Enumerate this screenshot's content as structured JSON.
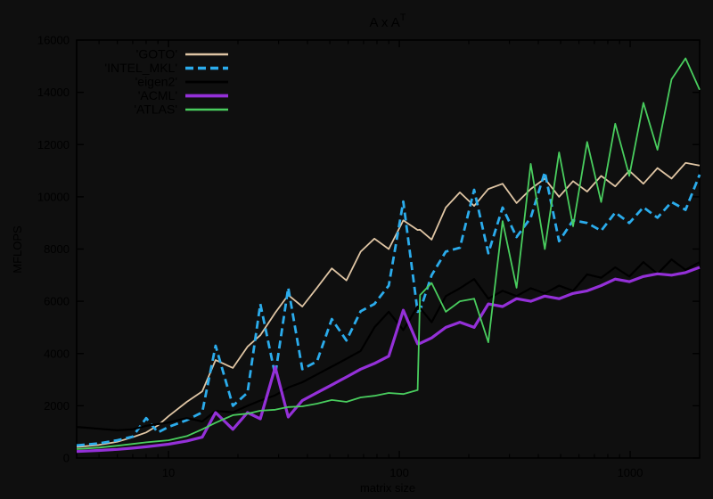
{
  "window": {
    "background_color": "#0f0f0f",
    "foreground_color": "#000000"
  },
  "title": {
    "base": "A x A",
    "sup": "T"
  },
  "axes": {
    "y_label": "MFLOPS",
    "x_label": "matrix size",
    "y_ticks": [
      0,
      2000,
      4000,
      6000,
      8000,
      10000,
      12000,
      14000,
      16000
    ],
    "x_ticks": [
      10,
      100,
      1000
    ],
    "x_minor_ticks": [
      4,
      5,
      6,
      7,
      8,
      9,
      20,
      30,
      40,
      50,
      60,
      70,
      80,
      90,
      200,
      300,
      400,
      500,
      600,
      700,
      800,
      900,
      2000
    ],
    "x_scale": "log",
    "x_range": [
      4,
      2000
    ],
    "y_range": [
      0,
      16000
    ]
  },
  "chart_data": {
    "type": "line",
    "title": "A x A^T",
    "xlabel": "matrix size",
    "ylabel": "MFLOPS",
    "x_scale": "log",
    "xlim": [
      4,
      2000
    ],
    "ylim": [
      0,
      16000
    ],
    "grid": false,
    "legend_position": "top-left-inside",
    "x": [
      4,
      5,
      6,
      7,
      8,
      9,
      10,
      12,
      14,
      16,
      19,
      22,
      25,
      29,
      33,
      38,
      44,
      51,
      59,
      68,
      78,
      90,
      104,
      120,
      123,
      138,
      159,
      183,
      211,
      243,
      280,
      322,
      371,
      427,
      492,
      566,
      651,
      749,
      862,
      992,
      1141,
      1313,
      1511,
      1738,
      2000
    ],
    "series": [
      {
        "key": "goto",
        "name": "'GOTO'",
        "color": "#dfc5a4",
        "dash": null,
        "width": 1.8,
        "values": [
          420,
          500,
          620,
          800,
          980,
          1250,
          1600,
          2150,
          2550,
          3750,
          3450,
          4260,
          4700,
          5560,
          6240,
          5800,
          6520,
          7260,
          6800,
          7900,
          8400,
          8000,
          9100,
          8730,
          8740,
          8360,
          9590,
          10170,
          9650,
          10300,
          10500,
          9760,
          10300,
          10700,
          10000,
          10600,
          10200,
          10800,
          10400,
          11000,
          10500,
          11100,
          10700,
          11300,
          11200
        ]
      },
      {
        "key": "intel-mkl",
        "name": "'INTEL_MKL'",
        "color": "#2bacec",
        "dash": "9,5",
        "width": 2.8,
        "values": [
          480,
          560,
          680,
          820,
          1530,
          980,
          1190,
          1450,
          1750,
          4300,
          2000,
          2500,
          5900,
          3170,
          6520,
          3400,
          3700,
          5320,
          4500,
          5620,
          5900,
          6600,
          9820,
          5600,
          5650,
          7000,
          7900,
          8050,
          10270,
          7840,
          9590,
          8460,
          9200,
          10950,
          8300,
          9100,
          9000,
          8700,
          9400,
          9000,
          9600,
          9200,
          9800,
          9500,
          10850
        ]
      },
      {
        "key": "eigen2",
        "name": "'eigen2'",
        "color": "#000000",
        "dash": null,
        "width": 2.2,
        "values": [
          1190,
          1120,
          1060,
          1100,
          1230,
          1300,
          1360,
          1530,
          1400,
          1800,
          1750,
          2000,
          2200,
          2400,
          2700,
          2900,
          3200,
          3500,
          3800,
          4100,
          5000,
          5600,
          4900,
          5800,
          5750,
          5200,
          6200,
          6500,
          6850,
          6100,
          6400,
          6200,
          6500,
          6300,
          6600,
          6400,
          7030,
          6900,
          7300,
          6950,
          7500,
          7050,
          7600,
          7200,
          7500
        ]
      },
      {
        "key": "acml",
        "name": "'ACML'",
        "color": "#9430d8",
        "dash": null,
        "width": 3.2,
        "values": [
          250,
          290,
          330,
          380,
          430,
          480,
          530,
          650,
          800,
          1740,
          1100,
          1740,
          1500,
          3480,
          1570,
          2200,
          2500,
          2800,
          3100,
          3400,
          3620,
          3900,
          5660,
          4370,
          4390,
          4600,
          5000,
          5200,
          5000,
          5900,
          5800,
          6100,
          6000,
          6200,
          6100,
          6300,
          6400,
          6600,
          6850,
          6750,
          6950,
          7050,
          7000,
          7100,
          7300
        ]
      },
      {
        "key": "atlas",
        "name": "'ATLAS'",
        "color": "#49cd5e",
        "dash": null,
        "width": 1.8,
        "values": [
          340,
          400,
          470,
          540,
          600,
          640,
          680,
          840,
          1100,
          1350,
          1640,
          1700,
          1810,
          1850,
          1950,
          1980,
          2080,
          2220,
          2150,
          2320,
          2380,
          2490,
          2450,
          2600,
          6240,
          6700,
          5600,
          6000,
          6100,
          4430,
          9070,
          6520,
          11260,
          8000,
          11700,
          8870,
          12100,
          9800,
          12800,
          10800,
          13600,
          11800,
          14500,
          15300,
          14100
        ]
      }
    ]
  }
}
